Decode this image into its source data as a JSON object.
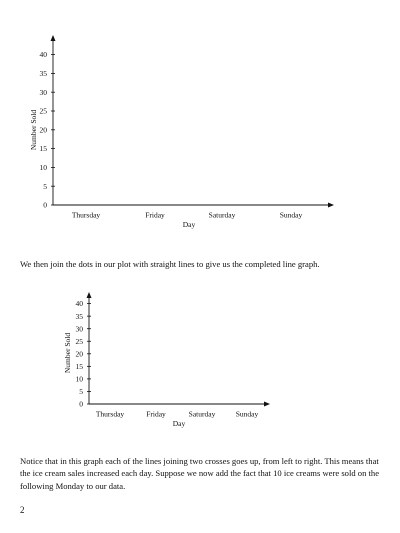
{
  "chart_data": [
    {
      "type": "line",
      "categories": [
        "Thursday",
        "Friday",
        "Saturday",
        "Sunday"
      ],
      "yticks": [
        "0",
        "5",
        "10",
        "15",
        "20",
        "25",
        "30",
        "35",
        "40"
      ],
      "ylim": [
        0,
        45
      ],
      "xlabel": "Day",
      "ylabel": "Number Sold",
      "grid": false
    },
    {
      "type": "line",
      "categories": [
        "Thursday",
        "Friday",
        "Saturday",
        "Sunday"
      ],
      "yticks": [
        "0",
        "5",
        "10",
        "15",
        "20",
        "25",
        "30",
        "35",
        "40"
      ],
      "ylim": [
        0,
        45
      ],
      "xlabel": "Day",
      "ylabel": "Number Sold",
      "grid": false
    }
  ],
  "text": {
    "paragraph1": "We then join the dots in our plot with straight lines to give us the completed line graph.",
    "paragraph2": "Notice that in this graph each of the lines joining two crosses goes up, from left to right. This means that the ice cream sales increased each day. Suppose we now add the fact that 10 ice creams were sold on the following Monday to our data.",
    "page_number": "2"
  }
}
